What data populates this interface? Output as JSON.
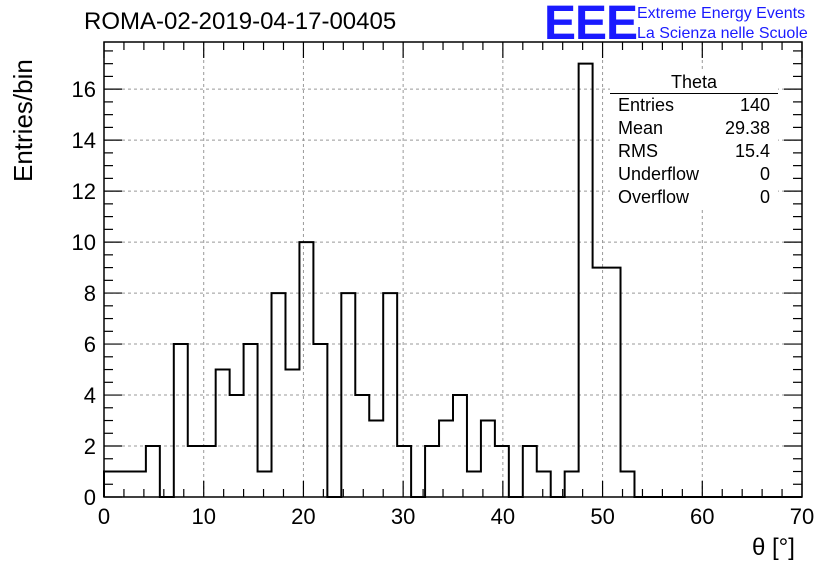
{
  "header": {
    "title": "ROMA-02-2019-04-17-00405",
    "logo_text": "EEE",
    "tagline_1": "Extreme Energy Events",
    "tagline_2": "La Scienza nelle Scuole"
  },
  "stats_box": {
    "title": "Theta",
    "rows": [
      {
        "label": "Entries",
        "value": "140"
      },
      {
        "label": "Mean",
        "value": "29.38"
      },
      {
        "label": "RMS",
        "value": "15.4"
      },
      {
        "label": "Underflow",
        "value": "0"
      },
      {
        "label": "Overflow",
        "value": "0"
      }
    ]
  },
  "colors": {
    "accent": "#1a1aff",
    "line": "#000000",
    "grid": "#999999"
  },
  "chart_data": {
    "type": "bar",
    "style": "step-histogram",
    "title": "ROMA-02-2019-04-17-00405",
    "xlabel": "θ [°]",
    "ylabel": "Entries/bin",
    "xlim": [
      0,
      70
    ],
    "ylim": [
      0,
      17.85
    ],
    "grid": true,
    "legend": "top-right",
    "bin_width": 1.4,
    "x_ticks": [
      0,
      10,
      20,
      30,
      40,
      50,
      60,
      70
    ],
    "y_ticks": [
      0,
      2,
      4,
      6,
      8,
      10,
      12,
      14,
      16
    ],
    "values": [
      1,
      1,
      1,
      2,
      0,
      6,
      2,
      2,
      5,
      4,
      6,
      1,
      8,
      5,
      10,
      6,
      0,
      8,
      4,
      3,
      8,
      2,
      0,
      2,
      3,
      4,
      1,
      3,
      2,
      0,
      2,
      1,
      0,
      1,
      17,
      9,
      9,
      1,
      0,
      0,
      0,
      0,
      0,
      0,
      0,
      0,
      0,
      0,
      0,
      0
    ]
  }
}
